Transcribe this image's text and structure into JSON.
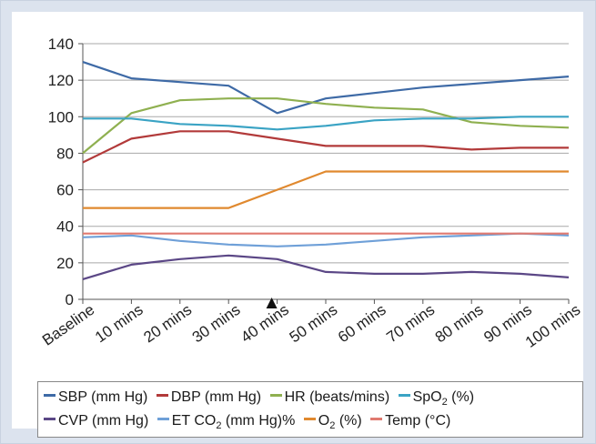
{
  "chart_data": {
    "type": "line",
    "categories": [
      "Baseline",
      "10 mins",
      "20 mins",
      "30 mins",
      "40 mins",
      "50 mins",
      "60 mins",
      "70 mins",
      "80 mins",
      "90 mins",
      "100 mins"
    ],
    "ylim": [
      0,
      140
    ],
    "yticks": [
      "0",
      "20",
      "40",
      "60",
      "80",
      "100",
      "120",
      "140"
    ],
    "grid": "horizontal",
    "legend_position": "bottom",
    "marker": "arrow under 40 mins",
    "series": [
      {
        "name": "SBP (mm Hg)",
        "color": "#3e6aa6",
        "values": [
          130,
          121,
          119,
          117,
          102,
          110,
          113,
          116,
          118,
          120,
          122
        ]
      },
      {
        "name": "DBP (mm Hg)",
        "color": "#b23a3a",
        "values": [
          75,
          88,
          92,
          92,
          88,
          84,
          84,
          84,
          82,
          83,
          83
        ]
      },
      {
        "name": "HR (beats/mins)",
        "color": "#8fb050",
        "values": [
          80,
          102,
          109,
          110,
          110,
          107,
          105,
          104,
          97,
          95,
          94
        ]
      },
      {
        "name": "SpO2 (%)",
        "color": "#3aa3c4",
        "values": [
          99,
          99,
          96,
          95,
          93,
          95,
          98,
          99,
          99,
          100,
          100
        ]
      },
      {
        "name": "CVP (mm Hg)",
        "color": "#5b4786",
        "values": [
          11,
          19,
          22,
          24,
          22,
          15,
          14,
          14,
          15,
          14,
          12
        ]
      },
      {
        "name": "ET CO2 (mm Hg)%",
        "color": "#6fa0d8",
        "values": [
          34,
          35,
          32,
          30,
          29,
          30,
          32,
          34,
          35,
          36,
          35
        ]
      },
      {
        "name": "O2 (%)",
        "color": "#e0892f",
        "values": [
          50,
          50,
          50,
          50,
          60,
          70,
          70,
          70,
          70,
          70,
          70
        ]
      },
      {
        "name": "Temp (°C)",
        "color": "#e07a70",
        "values": [
          36,
          36,
          36,
          36,
          36,
          36,
          36,
          36,
          36,
          36,
          36
        ]
      }
    ]
  },
  "legend": {
    "sbp_label": "SBP (mm Hg)",
    "dbp_label": "DBP (mm Hg)",
    "hr_label": "HR (beats/mins)",
    "spo2_prefix": "SpO",
    "spo2_sub": "2",
    "spo2_suffix": " (%)",
    "cvp_label": "CVP (mm Hg)",
    "etco2_prefix": "ET CO",
    "etco2_sub": "2",
    "etco2_suffix": " (mm Hg)%",
    "o2_prefix": "O",
    "o2_sub": "2",
    "o2_suffix": " (%)",
    "temp_label": "Temp (°C)"
  }
}
